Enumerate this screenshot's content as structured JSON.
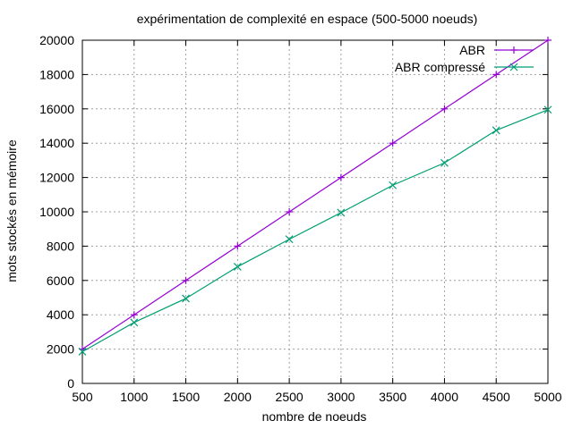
{
  "chart_data": {
    "type": "line",
    "title": "expérimentation de complexité en espace (500-5000 noeuds)",
    "xlabel": "nombre de noeuds",
    "ylabel": "mots stockés en mémoire",
    "x": [
      500,
      1000,
      1500,
      2000,
      2500,
      3000,
      3500,
      4000,
      4500,
      5000
    ],
    "xlim": [
      500,
      5000
    ],
    "ylim": [
      0,
      20000
    ],
    "xticks": [
      500,
      1000,
      1500,
      2000,
      2500,
      3000,
      3500,
      4000,
      4500,
      5000
    ],
    "yticks": [
      0,
      2000,
      4000,
      6000,
      8000,
      10000,
      12000,
      14000,
      16000,
      18000,
      20000
    ],
    "grid": true,
    "legend_position": "top-right",
    "series": [
      {
        "name": "ABR",
        "color": "#9400d3",
        "marker": "plus",
        "values": [
          2000,
          4000,
          6000,
          8000,
          10000,
          12000,
          14000,
          16000,
          18000,
          20000
        ]
      },
      {
        "name": "ABR compressé",
        "color": "#009e73",
        "marker": "cross",
        "values": [
          1850,
          3550,
          4950,
          6800,
          8400,
          9950,
          11550,
          12850,
          14750,
          15950
        ]
      }
    ]
  }
}
